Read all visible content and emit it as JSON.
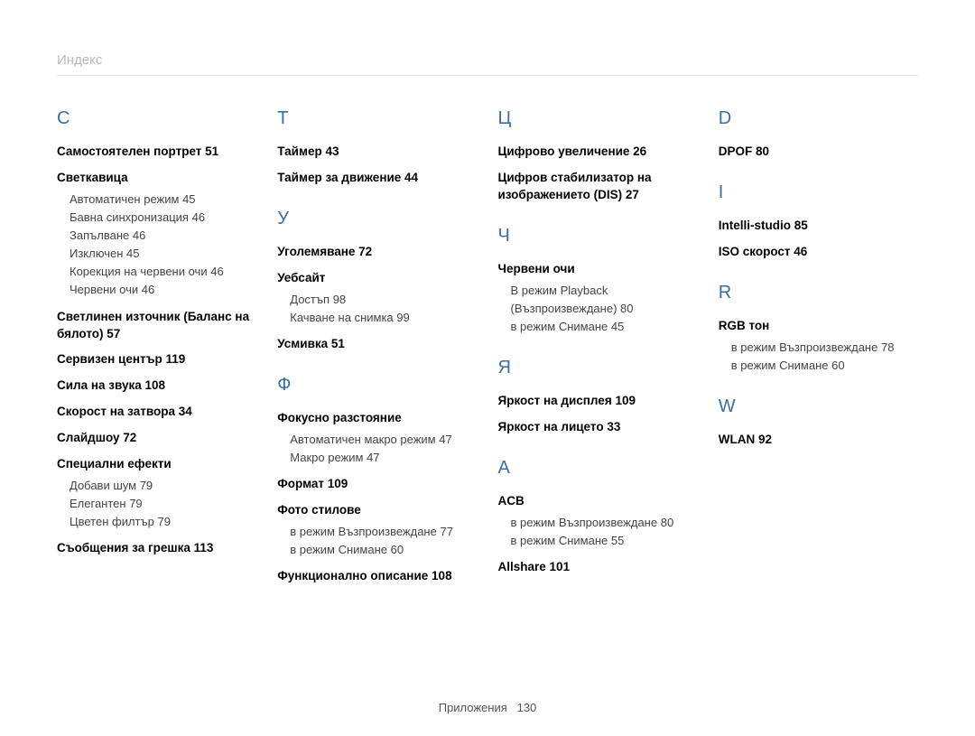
{
  "header": {
    "title": "Индекс"
  },
  "footer": {
    "label": "Приложения",
    "page": "130"
  },
  "colors": {
    "heading": "#3a6ea5",
    "headerText": "#b8b8b8",
    "bodyText": "#000000",
    "subText": "#444444",
    "rule": "#e5e5e5",
    "background": "#ffffff"
  },
  "columns": [
    {
      "sections": [
        {
          "letter": "С",
          "entries": [
            {
              "title": "Самостоятелен портрет",
              "page": "51"
            },
            {
              "title": "Светкавица",
              "subs": [
                {
                  "text": "Автоматичен режим",
                  "page": "45"
                },
                {
                  "text": "Бавна синхронизация",
                  "page": "46"
                },
                {
                  "text": "Запълване",
                  "page": "46"
                },
                {
                  "text": "Изключен",
                  "page": "45"
                },
                {
                  "text": "Корекция на червени очи",
                  "page": "46"
                },
                {
                  "text": "Червени очи",
                  "page": "46"
                }
              ]
            },
            {
              "title": "Светлинен източник (Баланс на бялото)",
              "page": "57"
            },
            {
              "title": "Сервизен център",
              "page": "119"
            },
            {
              "title": "Сила на звука",
              "page": "108"
            },
            {
              "title": "Скорост на затвора",
              "page": "34"
            },
            {
              "title": "Слайдшоу",
              "page": "72"
            },
            {
              "title": "Специални ефекти",
              "subs": [
                {
                  "text": "Добави шум",
                  "page": "79"
                },
                {
                  "text": "Елегантен",
                  "page": "79"
                },
                {
                  "text": "Цветен филтър",
                  "page": "79"
                }
              ]
            },
            {
              "title": "Съобщения за грешка",
              "page": "113"
            }
          ]
        }
      ]
    },
    {
      "sections": [
        {
          "letter": "Т",
          "entries": [
            {
              "title": "Таймер",
              "page": "43"
            },
            {
              "title": "Таймер за движение",
              "page": "44"
            }
          ]
        },
        {
          "letter": "У",
          "entries": [
            {
              "title": "Уголемяване",
              "page": "72"
            },
            {
              "title": "Уебсайт",
              "subs": [
                {
                  "text": "Достъп",
                  "page": "98"
                },
                {
                  "text": "Качване на снимка",
                  "page": "99"
                }
              ]
            },
            {
              "title": "Усмивка",
              "page": "51"
            }
          ]
        },
        {
          "letter": "Ф",
          "entries": [
            {
              "title": "Фокусно разстояние",
              "subs": [
                {
                  "text": "Автоматичен макро режим",
                  "page": "47"
                },
                {
                  "text": "Макро режим",
                  "page": "47"
                }
              ]
            },
            {
              "title": "Формат",
              "page": "109"
            },
            {
              "title": "Фото стилове",
              "subs": [
                {
                  "text": "в режим Възпроизвеждане",
                  "page": "77"
                },
                {
                  "text": "в режим Снимане",
                  "page": "60"
                }
              ]
            },
            {
              "title": "Функционално описание",
              "page": "108"
            }
          ]
        }
      ]
    },
    {
      "sections": [
        {
          "letter": "Ц",
          "entries": [
            {
              "title": "Цифрово увеличение",
              "page": "26"
            },
            {
              "title": "Цифров стабилизатор на изображението (DIS)",
              "page": "27"
            }
          ]
        },
        {
          "letter": "Ч",
          "entries": [
            {
              "title": "Червени очи",
              "subs": [
                {
                  "text": "В режим Playback (Възпроизвеждане)",
                  "page": "80"
                },
                {
                  "text": "в режим Снимане",
                  "page": "45"
                }
              ]
            }
          ]
        },
        {
          "letter": "Я",
          "entries": [
            {
              "title": "Яркост на дисплея",
              "page": "109"
            },
            {
              "title": "Яркост на лицето",
              "page": "33"
            }
          ]
        },
        {
          "letter": "A",
          "entries": [
            {
              "title": "ACB",
              "subs": [
                {
                  "text": "в режим Възпроизвеждане",
                  "page": "80"
                },
                {
                  "text": "в режим Снимане",
                  "page": "55"
                }
              ]
            },
            {
              "title": "Allshare",
              "page": "101"
            }
          ]
        }
      ]
    },
    {
      "sections": [
        {
          "letter": "D",
          "entries": [
            {
              "title": "DPOF",
              "page": "80"
            }
          ]
        },
        {
          "letter": "I",
          "entries": [
            {
              "title": "Intelli-studio",
              "page": "85"
            },
            {
              "title": "ISO скорост",
              "page": "46"
            }
          ]
        },
        {
          "letter": "R",
          "entries": [
            {
              "title": "RGB тон",
              "subs": [
                {
                  "text": "в режим Възпроизвеждане",
                  "page": "78"
                },
                {
                  "text": "в режим Снимане",
                  "page": "60"
                }
              ]
            }
          ]
        },
        {
          "letter": "W",
          "entries": [
            {
              "title": "WLAN",
              "page": "92"
            }
          ]
        }
      ]
    }
  ]
}
